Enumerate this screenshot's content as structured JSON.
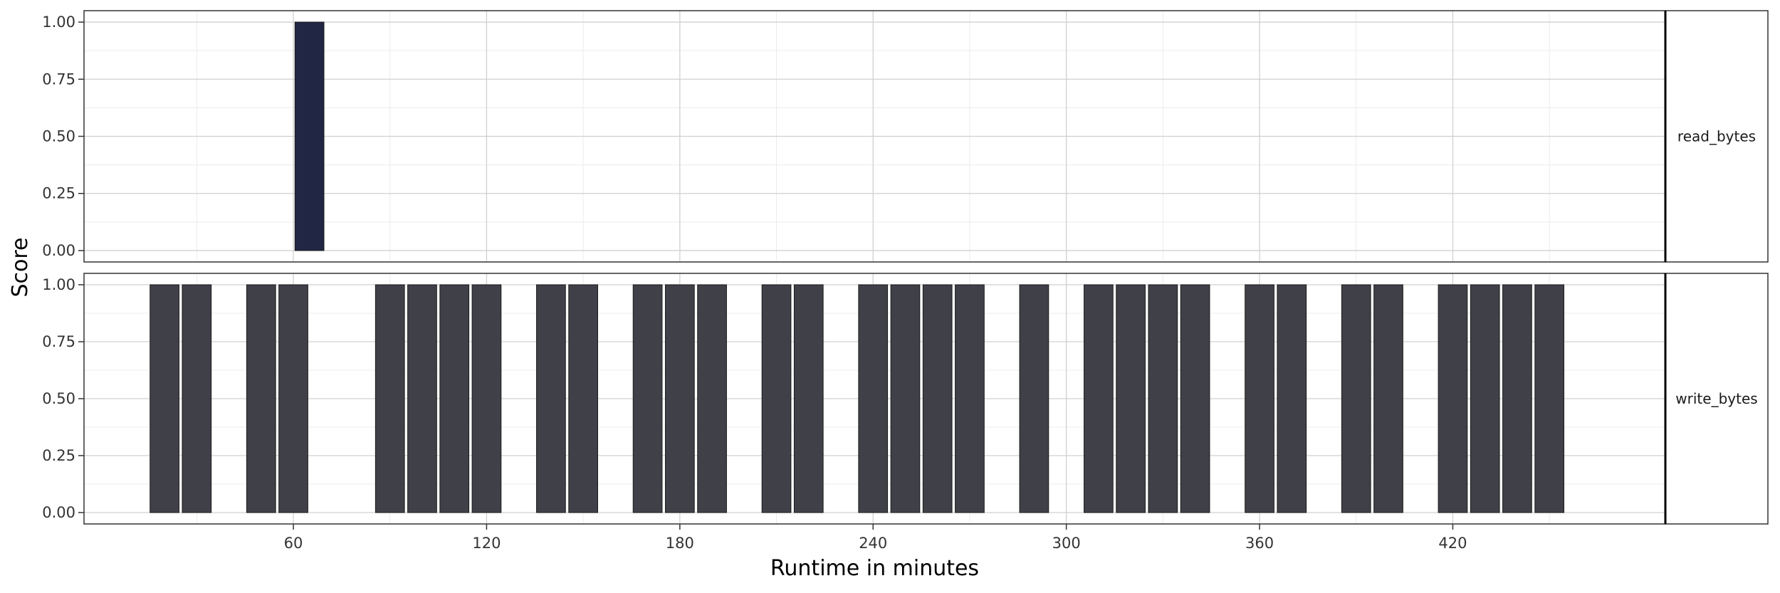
{
  "chart_data": {
    "type": "bar",
    "xlabel": "Runtime in minutes",
    "ylabel": "Score",
    "xlim": [
      -5,
      486
    ],
    "ylim": [
      -0.05,
      1.05
    ],
    "x_ticks": [
      60,
      120,
      180,
      240,
      300,
      360,
      420
    ],
    "y_ticks": [
      0.0,
      0.25,
      0.5,
      0.75,
      1.0
    ],
    "y_tick_labels": [
      "0.00",
      "0.25",
      "0.50",
      "0.75",
      "1.00"
    ],
    "grid": true,
    "bar_width_minutes": 9,
    "panels": [
      {
        "strip_label": "read_bytes",
        "bar_color": "#222645",
        "bars": [
          {
            "x": 65,
            "value": 1.0
          }
        ]
      },
      {
        "strip_label": "write_bytes",
        "bar_color": "#404148",
        "bars": [
          {
            "x": 20,
            "value": 1.0
          },
          {
            "x": 30,
            "value": 1.0
          },
          {
            "x": 50,
            "value": 1.0
          },
          {
            "x": 60,
            "value": 1.0
          },
          {
            "x": 90,
            "value": 1.0
          },
          {
            "x": 100,
            "value": 1.0
          },
          {
            "x": 110,
            "value": 1.0
          },
          {
            "x": 120,
            "value": 1.0
          },
          {
            "x": 140,
            "value": 1.0
          },
          {
            "x": 150,
            "value": 1.0
          },
          {
            "x": 170,
            "value": 1.0
          },
          {
            "x": 180,
            "value": 1.0
          },
          {
            "x": 190,
            "value": 1.0
          },
          {
            "x": 210,
            "value": 1.0
          },
          {
            "x": 220,
            "value": 1.0
          },
          {
            "x": 240,
            "value": 1.0
          },
          {
            "x": 250,
            "value": 1.0
          },
          {
            "x": 260,
            "value": 1.0
          },
          {
            "x": 270,
            "value": 1.0
          },
          {
            "x": 290,
            "value": 1.0
          },
          {
            "x": 310,
            "value": 1.0
          },
          {
            "x": 320,
            "value": 1.0
          },
          {
            "x": 330,
            "value": 1.0
          },
          {
            "x": 340,
            "value": 1.0
          },
          {
            "x": 360,
            "value": 1.0
          },
          {
            "x": 370,
            "value": 1.0
          },
          {
            "x": 390,
            "value": 1.0
          },
          {
            "x": 400,
            "value": 1.0
          },
          {
            "x": 420,
            "value": 1.0
          },
          {
            "x": 430,
            "value": 1.0
          },
          {
            "x": 440,
            "value": 1.0
          },
          {
            "x": 450,
            "value": 1.0
          }
        ]
      }
    ]
  }
}
